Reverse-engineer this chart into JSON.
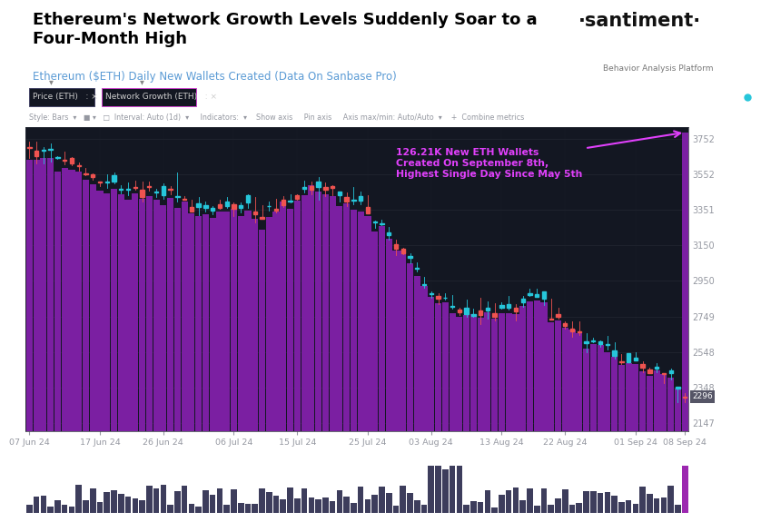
{
  "title": "Ethereum's Network Growth Levels Suddenly Soar to a\nFour-Month High",
  "subtitle": "Ethereum ($ETH) Daily New Wallets Created (Data On Sanbase Pro)",
  "santiment_label": "·santiment·",
  "santiment_sub": "Behavior Analysis Platform",
  "bg_color": "#131722",
  "header_bg": "#ffffff",
  "chart_bg": "#131722",
  "annotation_text": "126.21K New ETH Wallets\nCreated On September 8th,\nHighest Single Day Since May 5th",
  "annotation_color": "#e040fb",
  "arrow_color": "#e040fb",
  "current_price_label": "2296",
  "y_ticks": [
    2147,
    2348,
    2548,
    2749,
    2950,
    3150,
    3351,
    3552,
    3752
  ],
  "y_min": 2100,
  "y_max": 3820,
  "x_labels": [
    "07 Jun 24",
    "17 Jun 24",
    "26 Jun 24",
    "06 Jul 24",
    "15 Jul 24",
    "25 Jul 24",
    "03 Aug 24",
    "13 Aug 24",
    "22 Aug 24",
    "01 Sep 24",
    "08 Sep 24"
  ],
  "x_tick_positions": [
    0,
    10,
    19,
    29,
    38,
    48,
    57,
    67,
    76,
    86,
    93
  ],
  "bar_color": "#7b1fa2",
  "candle_up_color": "#26c6da",
  "candle_down_color": "#ef5350",
  "toolbar_bg": "#1e222d",
  "toolbar_text": "#9598a1",
  "grid_color": "#2a2e39",
  "axis_text_color": "#9598a1",
  "volume_bar_color": "#3d3d5c",
  "volume_bar_highlight": "#9c27b0",
  "n_days": 94,
  "price_anchors_x": [
    0,
    5,
    10,
    15,
    19,
    25,
    29,
    33,
    38,
    43,
    48,
    53,
    57,
    61,
    65,
    68,
    72,
    76,
    80,
    84,
    88,
    91,
    93
  ],
  "price_anchors_y": [
    3700,
    3640,
    3520,
    3490,
    3460,
    3360,
    3390,
    3330,
    3460,
    3490,
    3360,
    3120,
    2880,
    2790,
    2760,
    2790,
    2860,
    2710,
    2610,
    2510,
    2460,
    2410,
    2296
  ]
}
